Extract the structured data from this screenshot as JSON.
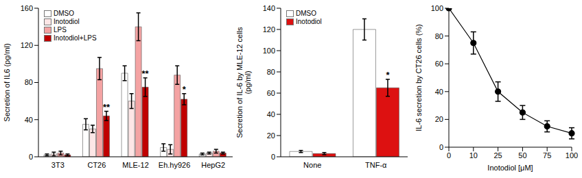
{
  "chart_data": [
    {
      "type": "bar",
      "y_label": [
        "Secretion of IL6 (pg/ml)"
      ],
      "categories": [
        "3T3",
        "CT26",
        "MLE-12",
        "Eh.hy926",
        "HepG2"
      ],
      "series": [
        {
          "name": "DMSO",
          "color": "#ffffff",
          "values": [
            2,
            35,
            90,
            10,
            3
          ],
          "errors": [
            1,
            6,
            8,
            4,
            1
          ]
        },
        {
          "name": "Inotodiol",
          "color": "#fde6e6",
          "values": [
            3,
            30,
            60,
            8,
            4
          ],
          "errors": [
            2,
            4,
            8,
            5,
            1
          ]
        },
        {
          "name": "LPS",
          "color": "#f4a3a3",
          "values": [
            4,
            95,
            140,
            88,
            6
          ],
          "errors": [
            2,
            12,
            15,
            10,
            2
          ]
        },
        {
          "name": "Inotodiol+LPS",
          "color": "#c00000",
          "values": [
            2,
            44,
            75,
            62,
            4
          ],
          "errors": [
            1,
            5,
            10,
            6,
            1
          ]
        }
      ],
      "ylim": [
        0,
        160
      ],
      "yticks": [
        0,
        40,
        80,
        120,
        160
      ],
      "legend": "upper left",
      "annotations": [
        {
          "category": "CT26",
          "series": "Inotodiol+LPS",
          "text": "**"
        },
        {
          "category": "MLE-12",
          "series": "Inotodiol+LPS",
          "text": "**"
        },
        {
          "category": "Eh.hy926",
          "series": "Inotodiol+LPS",
          "text": "*"
        }
      ]
    },
    {
      "type": "bar",
      "y_label": [
        "Secretion of IL-6 by MLE-12 cells",
        "(pg/ml)"
      ],
      "categories": [
        "None",
        "TNF-α"
      ],
      "series": [
        {
          "name": "DMSO",
          "color": "#ffffff",
          "values": [
            5,
            120
          ],
          "errors": [
            1,
            10
          ]
        },
        {
          "name": "Inotodiol",
          "color": "#dd1111",
          "values": [
            3,
            65
          ],
          "errors": [
            1,
            8
          ]
        }
      ],
      "ylim": [
        0,
        140
      ],
      "yticks": [
        0,
        20,
        40,
        60,
        80,
        100,
        120,
        140
      ],
      "legend": "upper left",
      "annotations": [
        {
          "category": "TNF-α",
          "series": "Inotodiol",
          "text": "*"
        }
      ]
    },
    {
      "type": "line",
      "x_label": "Inotodiol [μM]",
      "y_label": [
        "IL-6 secretion by CT26 cells (%)"
      ],
      "categories": [
        "0",
        "10",
        "25",
        "50",
        "75",
        "100"
      ],
      "values": [
        100,
        75,
        40,
        25,
        15,
        10
      ],
      "errors": [
        0,
        8,
        7,
        5,
        4,
        4
      ],
      "color": "#000000",
      "marker": "circle",
      "ylim": [
        0,
        100
      ],
      "yticks": [
        0,
        20,
        40,
        60,
        80,
        100
      ]
    }
  ]
}
